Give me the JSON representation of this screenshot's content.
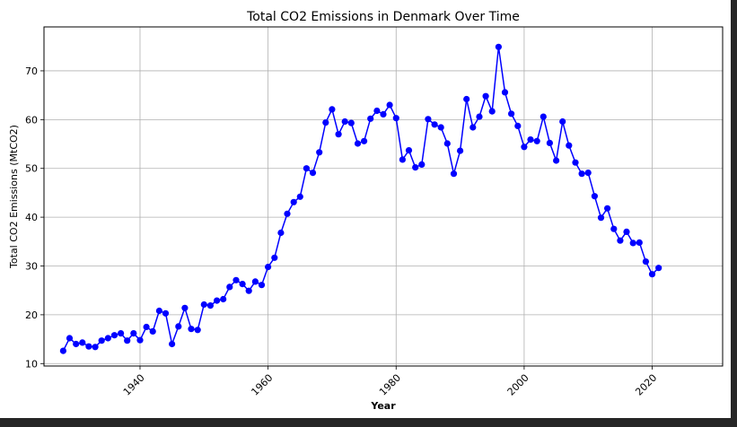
{
  "chart_data": {
    "type": "line",
    "title": "Total CO2 Emissions in Denmark Over Time",
    "xlabel": "Year",
    "ylabel": "Total CO2 Emissions (MtCO2)",
    "xlim": [
      1925,
      2031
    ],
    "ylim": [
      9.5,
      79
    ],
    "xticks": [
      1940,
      1960,
      1980,
      2000,
      2020
    ],
    "yticks": [
      10,
      20,
      30,
      40,
      50,
      60,
      70
    ],
    "grid": true,
    "marker": "circle",
    "line_color": "#0000ff",
    "series": [
      {
        "x": [
          1928,
          1929,
          1930,
          1931,
          1932,
          1933,
          1934,
          1935,
          1936,
          1937,
          1938,
          1939,
          1940,
          1941,
          1942,
          1943,
          1944,
          1945,
          1946,
          1947,
          1948,
          1949,
          1950,
          1951,
          1952,
          1953,
          1954,
          1955,
          1956,
          1957,
          1958,
          1959,
          1960,
          1961,
          1962,
          1963,
          1964,
          1965,
          1966,
          1967,
          1968,
          1969,
          1970,
          1971,
          1972,
          1973,
          1974,
          1975,
          1976,
          1977,
          1978,
          1979,
          1980,
          1981,
          1982,
          1983,
          1984,
          1985,
          1986,
          1987,
          1988,
          1989,
          1990,
          1991,
          1992,
          1993,
          1994,
          1995,
          1996,
          1997,
          1998,
          1999,
          2000,
          2001,
          2002,
          2003,
          2004,
          2005,
          2006,
          2007,
          2008,
          2009,
          2010,
          2011,
          2012,
          2013,
          2014,
          2015,
          2016,
          2017,
          2018,
          2019,
          2020,
          2021
        ],
        "y": [
          12.6,
          15.2,
          14.0,
          14.3,
          13.5,
          13.4,
          14.7,
          15.2,
          15.8,
          16.2,
          14.7,
          16.2,
          14.8,
          17.5,
          16.6,
          20.8,
          20.3,
          14.0,
          17.6,
          21.4,
          17.1,
          16.9,
          22.1,
          21.9,
          22.9,
          23.2,
          25.7,
          27.1,
          26.3,
          24.9,
          26.8,
          26.1,
          29.8,
          31.7,
          36.8,
          40.7,
          43.1,
          44.2,
          50.0,
          49.1,
          53.3,
          59.4,
          62.1,
          57.0,
          59.6,
          59.3,
          55.1,
          55.6,
          60.2,
          61.8,
          61.1,
          63.0,
          60.3,
          51.8,
          53.7,
          50.2,
          50.8,
          60.1,
          59.0,
          58.4,
          55.1,
          48.9,
          53.6,
          64.2,
          58.4,
          60.6,
          64.8,
          61.7,
          74.9,
          65.6,
          61.2,
          58.7,
          54.4,
          55.9,
          55.6,
          60.6,
          55.2,
          51.6,
          59.6,
          54.7,
          51.2,
          48.9,
          49.1,
          44.3,
          39.9,
          41.8,
          37.6,
          35.2,
          37.0,
          34.7,
          34.8,
          30.9,
          28.3,
          29.6
        ]
      }
    ]
  }
}
